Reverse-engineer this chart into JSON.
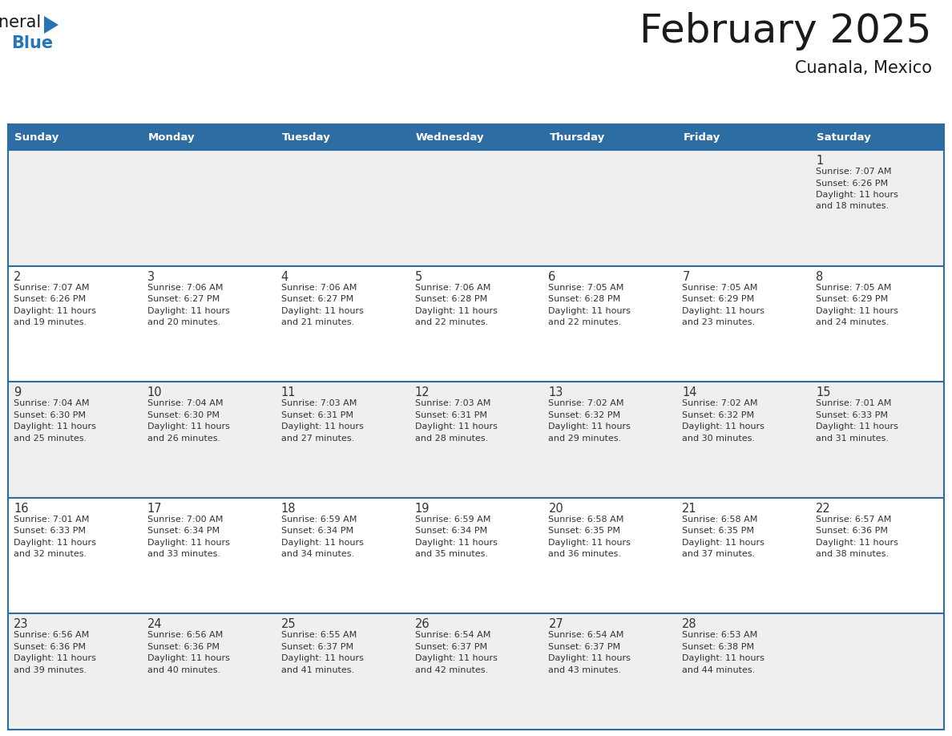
{
  "title": "February 2025",
  "subtitle": "Cuanala, Mexico",
  "header_bg_color": "#2E6DA4",
  "header_text_color": "#FFFFFF",
  "row_bg_odd": "#EFEFEF",
  "row_bg_even": "#FFFFFF",
  "border_color": "#2E6DA4",
  "day_headers": [
    "Sunday",
    "Monday",
    "Tuesday",
    "Wednesday",
    "Thursday",
    "Friday",
    "Saturday"
  ],
  "title_color": "#1a1a1a",
  "subtitle_color": "#1a1a1a",
  "day_number_color": "#333333",
  "cell_text_color": "#333333",
  "calendar_data": [
    [
      null,
      null,
      null,
      null,
      null,
      null,
      {
        "day": "1",
        "sunrise": "7:07 AM",
        "sunset": "6:26 PM",
        "daylight_h": "11 hours",
        "daylight_m": "18 minutes."
      }
    ],
    [
      {
        "day": "2",
        "sunrise": "7:07 AM",
        "sunset": "6:26 PM",
        "daylight_h": "11 hours",
        "daylight_m": "19 minutes."
      },
      {
        "day": "3",
        "sunrise": "7:06 AM",
        "sunset": "6:27 PM",
        "daylight_h": "11 hours",
        "daylight_m": "20 minutes."
      },
      {
        "day": "4",
        "sunrise": "7:06 AM",
        "sunset": "6:27 PM",
        "daylight_h": "11 hours",
        "daylight_m": "21 minutes."
      },
      {
        "day": "5",
        "sunrise": "7:06 AM",
        "sunset": "6:28 PM",
        "daylight_h": "11 hours",
        "daylight_m": "22 minutes."
      },
      {
        "day": "6",
        "sunrise": "7:05 AM",
        "sunset": "6:28 PM",
        "daylight_h": "11 hours",
        "daylight_m": "22 minutes."
      },
      {
        "day": "7",
        "sunrise": "7:05 AM",
        "sunset": "6:29 PM",
        "daylight_h": "11 hours",
        "daylight_m": "23 minutes."
      },
      {
        "day": "8",
        "sunrise": "7:05 AM",
        "sunset": "6:29 PM",
        "daylight_h": "11 hours",
        "daylight_m": "24 minutes."
      }
    ],
    [
      {
        "day": "9",
        "sunrise": "7:04 AM",
        "sunset": "6:30 PM",
        "daylight_h": "11 hours",
        "daylight_m": "25 minutes."
      },
      {
        "day": "10",
        "sunrise": "7:04 AM",
        "sunset": "6:30 PM",
        "daylight_h": "11 hours",
        "daylight_m": "26 minutes."
      },
      {
        "day": "11",
        "sunrise": "7:03 AM",
        "sunset": "6:31 PM",
        "daylight_h": "11 hours",
        "daylight_m": "27 minutes."
      },
      {
        "day": "12",
        "sunrise": "7:03 AM",
        "sunset": "6:31 PM",
        "daylight_h": "11 hours",
        "daylight_m": "28 minutes."
      },
      {
        "day": "13",
        "sunrise": "7:02 AM",
        "sunset": "6:32 PM",
        "daylight_h": "11 hours",
        "daylight_m": "29 minutes."
      },
      {
        "day": "14",
        "sunrise": "7:02 AM",
        "sunset": "6:32 PM",
        "daylight_h": "11 hours",
        "daylight_m": "30 minutes."
      },
      {
        "day": "15",
        "sunrise": "7:01 AM",
        "sunset": "6:33 PM",
        "daylight_h": "11 hours",
        "daylight_m": "31 minutes."
      }
    ],
    [
      {
        "day": "16",
        "sunrise": "7:01 AM",
        "sunset": "6:33 PM",
        "daylight_h": "11 hours",
        "daylight_m": "32 minutes."
      },
      {
        "day": "17",
        "sunrise": "7:00 AM",
        "sunset": "6:34 PM",
        "daylight_h": "11 hours",
        "daylight_m": "33 minutes."
      },
      {
        "day": "18",
        "sunrise": "6:59 AM",
        "sunset": "6:34 PM",
        "daylight_h": "11 hours",
        "daylight_m": "34 minutes."
      },
      {
        "day": "19",
        "sunrise": "6:59 AM",
        "sunset": "6:34 PM",
        "daylight_h": "11 hours",
        "daylight_m": "35 minutes."
      },
      {
        "day": "20",
        "sunrise": "6:58 AM",
        "sunset": "6:35 PM",
        "daylight_h": "11 hours",
        "daylight_m": "36 minutes."
      },
      {
        "day": "21",
        "sunrise": "6:58 AM",
        "sunset": "6:35 PM",
        "daylight_h": "11 hours",
        "daylight_m": "37 minutes."
      },
      {
        "day": "22",
        "sunrise": "6:57 AM",
        "sunset": "6:36 PM",
        "daylight_h": "11 hours",
        "daylight_m": "38 minutes."
      }
    ],
    [
      {
        "day": "23",
        "sunrise": "6:56 AM",
        "sunset": "6:36 PM",
        "daylight_h": "11 hours",
        "daylight_m": "39 minutes."
      },
      {
        "day": "24",
        "sunrise": "6:56 AM",
        "sunset": "6:36 PM",
        "daylight_h": "11 hours",
        "daylight_m": "40 minutes."
      },
      {
        "day": "25",
        "sunrise": "6:55 AM",
        "sunset": "6:37 PM",
        "daylight_h": "11 hours",
        "daylight_m": "41 minutes."
      },
      {
        "day": "26",
        "sunrise": "6:54 AM",
        "sunset": "6:37 PM",
        "daylight_h": "11 hours",
        "daylight_m": "42 minutes."
      },
      {
        "day": "27",
        "sunrise": "6:54 AM",
        "sunset": "6:37 PM",
        "daylight_h": "11 hours",
        "daylight_m": "43 minutes."
      },
      {
        "day": "28",
        "sunrise": "6:53 AM",
        "sunset": "6:38 PM",
        "daylight_h": "11 hours",
        "daylight_m": "44 minutes."
      },
      null
    ]
  ],
  "logo_general_color": "#1a1a1a",
  "logo_blue_color": "#2775B6"
}
